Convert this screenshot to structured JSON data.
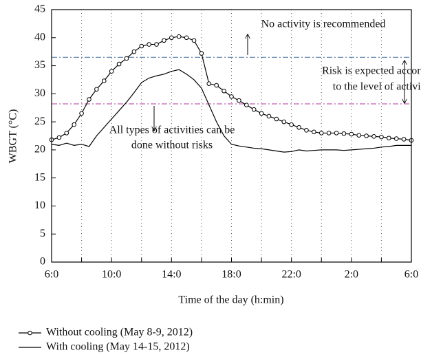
{
  "chart_data": {
    "type": "line",
    "x_label": "Time of the day (h:min)",
    "y_label": "WBGT (°C)",
    "xlim": [
      0,
      24
    ],
    "xticks": [
      {
        "value": 0,
        "label": "6:0"
      },
      {
        "value": 4,
        "label": "10:0"
      },
      {
        "value": 8,
        "label": "14:0"
      },
      {
        "value": 12,
        "label": "18:0"
      },
      {
        "value": 16,
        "label": "22:0"
      },
      {
        "value": 20,
        "label": "2:0"
      },
      {
        "value": 24,
        "label": "6:0"
      }
    ],
    "xminorticks": [
      2,
      6,
      10,
      14,
      18,
      22
    ],
    "ylim": [
      0,
      45
    ],
    "yticks": [
      0,
      5,
      10,
      15,
      20,
      25,
      30,
      35,
      40,
      45
    ],
    "grid": true,
    "x": [
      0,
      0.5,
      1,
      1.5,
      2,
      2.5,
      3,
      3.5,
      4,
      4.5,
      5,
      5.5,
      6,
      6.5,
      7,
      7.5,
      8,
      8.5,
      9,
      9.5,
      10,
      10.5,
      11,
      11.5,
      12,
      12.5,
      13,
      13.5,
      14,
      14.5,
      15,
      15.5,
      16,
      16.5,
      17,
      17.5,
      18,
      18.5,
      19,
      19.5,
      20,
      20.5,
      21,
      21.5,
      22,
      22.5,
      23,
      23.5,
      24
    ],
    "series": [
      {
        "name": "Without cooling (May 8-9, 2012)",
        "color": "#000000",
        "marker": "circle",
        "values": [
          21.8,
          22.2,
          23,
          24.5,
          26.5,
          29,
          30.8,
          32.3,
          34,
          35.3,
          36.3,
          37.5,
          38.5,
          38.8,
          38.8,
          39.5,
          40,
          40.2,
          40,
          39.5,
          37.2,
          31.8,
          31.5,
          30.5,
          29.5,
          28.8,
          28,
          27.2,
          26.5,
          26,
          25.5,
          25,
          24.5,
          24,
          23.5,
          23.2,
          23,
          23,
          23,
          22.9,
          22.8,
          22.6,
          22.5,
          22.4,
          22.3,
          22.1,
          22,
          21.9,
          21.7
        ]
      },
      {
        "name": "With cooling (May 14-15, 2012)",
        "color": "#000000",
        "marker": "none",
        "values": [
          21,
          20.8,
          21.2,
          20.8,
          21,
          20.6,
          22.5,
          24,
          25.5,
          27,
          28.5,
          30.2,
          32,
          32.8,
          33.2,
          33.5,
          34,
          34.3,
          33.5,
          32.5,
          31,
          28,
          25,
          22.5,
          21,
          20.7,
          20.5,
          20.3,
          20.2,
          20,
          19.8,
          19.6,
          19.7,
          20,
          19.8,
          19.9,
          20,
          20,
          20,
          19.9,
          20,
          20.1,
          20.2,
          20.3,
          20.5,
          20.6,
          20.8,
          20.8,
          20.8
        ]
      }
    ],
    "thresholds": [
      {
        "value": 36.5,
        "color": "#5a7fa8"
      },
      {
        "value": 28.2,
        "color": "#c060b0"
      }
    ],
    "annotations": [
      "No activity is recommended",
      "Risk is expected according",
      "to the level of activity",
      "All types of activities can be",
      "done without risks"
    ]
  }
}
